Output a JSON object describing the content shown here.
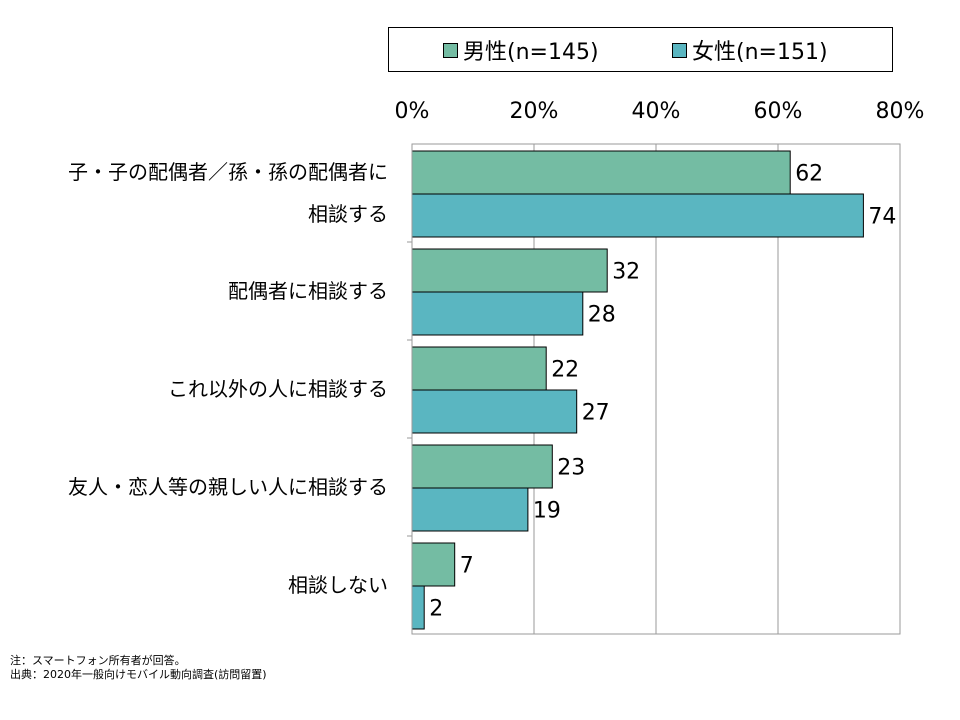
{
  "chart_data": {
    "type": "bar",
    "orientation": "horizontal",
    "categories": [
      [
        "子・子の配偶者／孫・孫の配偶者に",
        "相談する"
      ],
      [
        "配偶者に相談する"
      ],
      [
        "これ以外の人に相談する"
      ],
      [
        "友人・恋人等の親しい人に相談する"
      ],
      [
        "相談しない"
      ]
    ],
    "series": [
      {
        "name": "男性(n=145)",
        "color": "#74bca3",
        "values": [
          62,
          32,
          22,
          23,
          7
        ]
      },
      {
        "name": "女性(n=151)",
        "color": "#5ab6c1",
        "values": [
          74,
          28,
          27,
          19,
          2
        ]
      }
    ],
    "xlim": [
      0,
      80
    ],
    "xticks": [
      0,
      20,
      40,
      60,
      80
    ],
    "tick_labels": [
      "0%",
      "20%",
      "40%",
      "60%",
      "80%"
    ],
    "grid": true,
    "legend_position": "top"
  },
  "footnotes": {
    "note": "注：スマートフォン所有者が回答。",
    "source": "出典：2020年一般向けモバイル動向調査(訪問留置)"
  }
}
